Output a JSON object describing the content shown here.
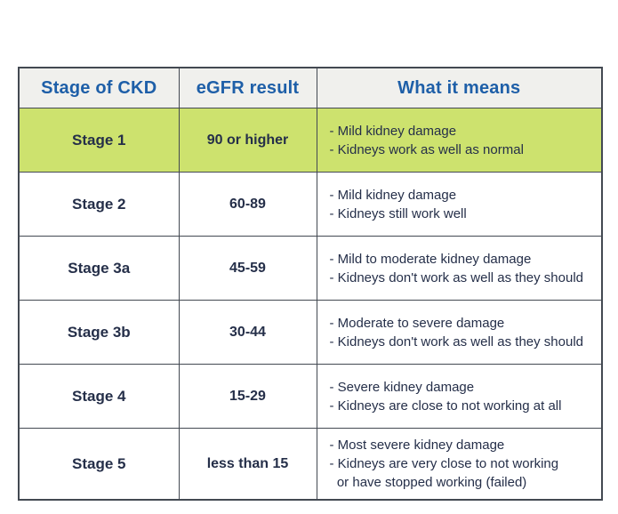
{
  "table": {
    "headers": [
      {
        "label": "Stage of CKD"
      },
      {
        "label": "eGFR result"
      },
      {
        "label": "What it means"
      }
    ],
    "rows": [
      {
        "stage": "Stage 1",
        "egfr": "90 or higher",
        "highlight": true,
        "meaning": [
          "- Mild kidney damage",
          "- Kidneys work as well as normal"
        ]
      },
      {
        "stage": "Stage 2",
        "egfr": "60-89",
        "highlight": false,
        "meaning": [
          "- Mild kidney damage",
          "- Kidneys still work well"
        ]
      },
      {
        "stage": "Stage 3a",
        "egfr": "45-59",
        "highlight": false,
        "meaning": [
          "- Mild to moderate kidney damage",
          "- Kidneys don't work as well as they should"
        ]
      },
      {
        "stage": "Stage 3b",
        "egfr": "30-44",
        "highlight": false,
        "meaning": [
          "- Moderate to severe damage",
          "- Kidneys don't work as well as they should"
        ]
      },
      {
        "stage": "Stage 4",
        "egfr": "15-29",
        "highlight": false,
        "meaning": [
          "- Severe kidney damage",
          "- Kidneys are close to not working at all"
        ]
      },
      {
        "stage": "Stage 5",
        "egfr": "less than 15",
        "highlight": false,
        "meaning": [
          "- Most severe kidney damage",
          "- Kidneys are very close to not working",
          "  or have stopped working (failed)"
        ]
      }
    ],
    "colors": {
      "header_text": "#1e5fa8",
      "header_bg": "#f0f0ed",
      "highlight_row": "#cde26e",
      "body_text": "#252f49",
      "border": "#434952"
    }
  }
}
